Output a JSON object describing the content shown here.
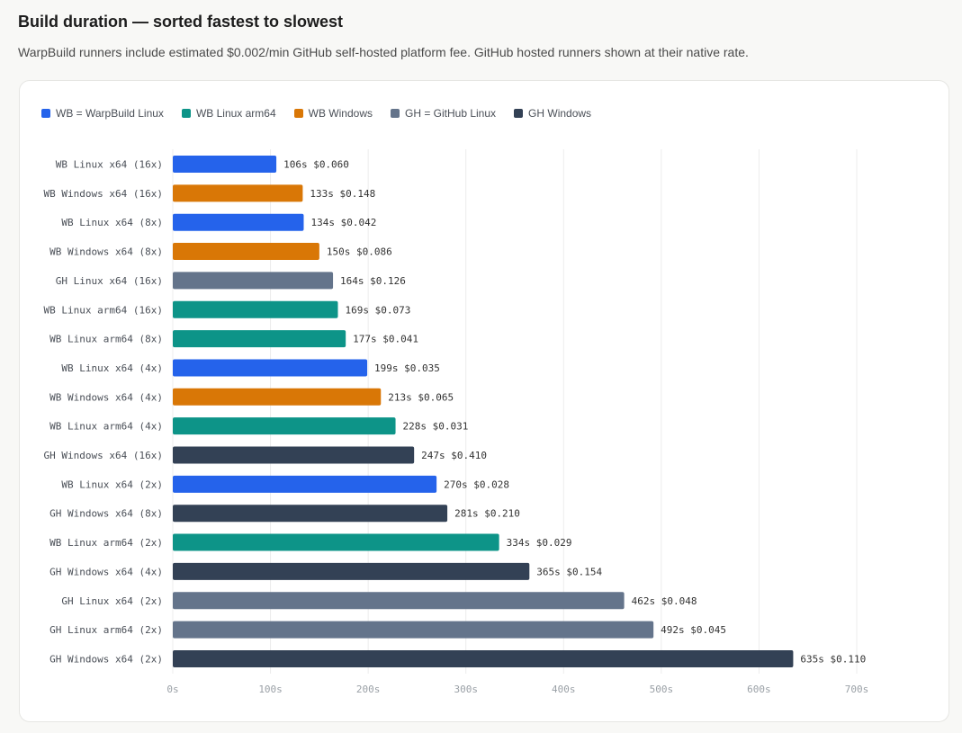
{
  "header": {
    "title": "Build duration — sorted fastest to slowest",
    "subtitle": "WarpBuild runners include estimated $0.002/min GitHub self-hosted platform fee. GitHub hosted runners shown at their native rate."
  },
  "legend": [
    {
      "label": "WB = WarpBuild Linux",
      "color": "#2563eb"
    },
    {
      "label": "WB Linux arm64",
      "color": "#0d9488"
    },
    {
      "label": "WB Windows",
      "color": "#d97706"
    },
    {
      "label": "GH = GitHub Linux",
      "color": "#64748b"
    },
    {
      "label": "GH Windows",
      "color": "#334155"
    }
  ],
  "chart_data": {
    "type": "bar",
    "orientation": "horizontal",
    "xlim": [
      0,
      700
    ],
    "xticks": [
      "0s",
      "100s",
      "200s",
      "300s",
      "400s",
      "500s",
      "600s",
      "700s"
    ],
    "grid": true,
    "legend_position": "top-left",
    "bars": [
      {
        "label": "WB Linux x64 (16x)",
        "value": 106,
        "value_label": "106s",
        "cost": "$0.060",
        "group": 0
      },
      {
        "label": "WB Windows x64 (16x)",
        "value": 133,
        "value_label": "133s",
        "cost": "$0.148",
        "group": 2
      },
      {
        "label": "WB Linux x64 (8x)",
        "value": 134,
        "value_label": "134s",
        "cost": "$0.042",
        "group": 0
      },
      {
        "label": "WB Windows x64 (8x)",
        "value": 150,
        "value_label": "150s",
        "cost": "$0.086",
        "group": 2
      },
      {
        "label": "GH Linux x64 (16x)",
        "value": 164,
        "value_label": "164s",
        "cost": "$0.126",
        "group": 3
      },
      {
        "label": "WB Linux arm64 (16x)",
        "value": 169,
        "value_label": "169s",
        "cost": "$0.073",
        "group": 1
      },
      {
        "label": "WB Linux arm64 (8x)",
        "value": 177,
        "value_label": "177s",
        "cost": "$0.041",
        "group": 1
      },
      {
        "label": "WB Linux x64 (4x)",
        "value": 199,
        "value_label": "199s",
        "cost": "$0.035",
        "group": 0
      },
      {
        "label": "WB Windows x64 (4x)",
        "value": 213,
        "value_label": "213s",
        "cost": "$0.065",
        "group": 2
      },
      {
        "label": "WB Linux arm64 (4x)",
        "value": 228,
        "value_label": "228s",
        "cost": "$0.031",
        "group": 1
      },
      {
        "label": "GH Windows x64 (16x)",
        "value": 247,
        "value_label": "247s",
        "cost": "$0.410",
        "group": 4
      },
      {
        "label": "WB Linux x64 (2x)",
        "value": 270,
        "value_label": "270s",
        "cost": "$0.028",
        "group": 0
      },
      {
        "label": "GH Windows x64 (8x)",
        "value": 281,
        "value_label": "281s",
        "cost": "$0.210",
        "group": 4
      },
      {
        "label": "WB Linux arm64 (2x)",
        "value": 334,
        "value_label": "334s",
        "cost": "$0.029",
        "group": 1
      },
      {
        "label": "GH Windows x64 (4x)",
        "value": 365,
        "value_label": "365s",
        "cost": "$0.154",
        "group": 4
      },
      {
        "label": "GH Linux x64 (2x)",
        "value": 462,
        "value_label": "462s",
        "cost": "$0.048",
        "group": 3
      },
      {
        "label": "GH Linux arm64 (2x)",
        "value": 492,
        "value_label": "492s",
        "cost": "$0.045",
        "group": 3
      },
      {
        "label": "GH Windows x64 (2x)",
        "value": 635,
        "value_label": "635s",
        "cost": "$0.110",
        "group": 4
      }
    ]
  }
}
